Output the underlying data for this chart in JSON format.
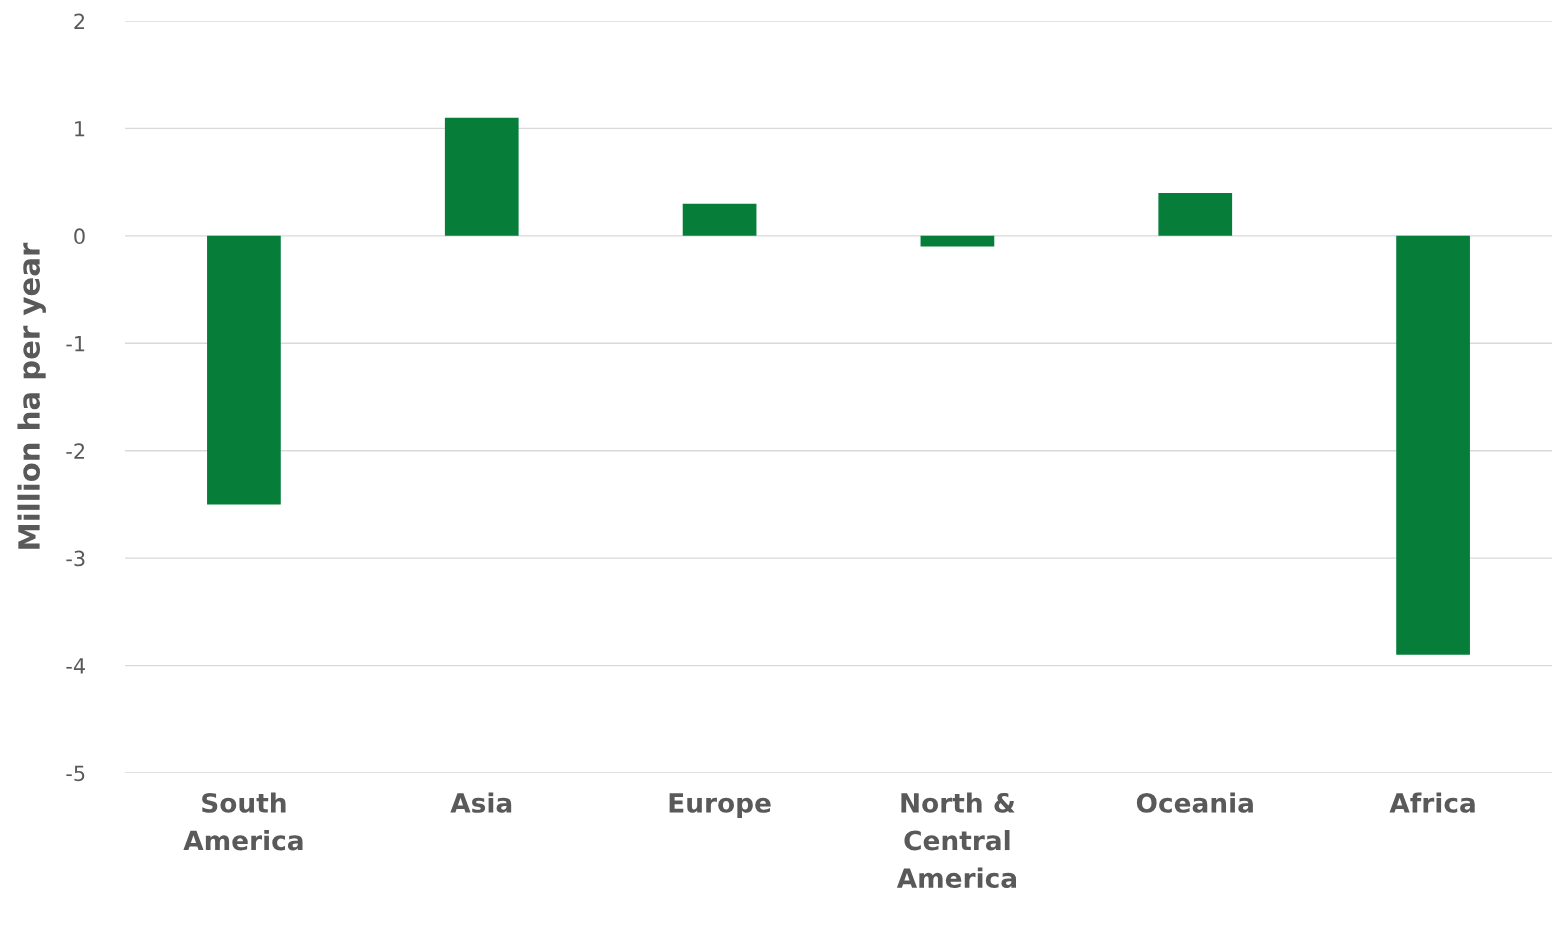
{
  "chart_data": {
    "type": "bar",
    "ylabel": "Million ha per year",
    "categories": [
      "South\nAmerica",
      "Asia",
      "Europe",
      "North &\nCentral\nAmerica",
      "Oceania",
      "Africa"
    ],
    "values": [
      -2.5,
      1.1,
      0.3,
      -0.1,
      0.4,
      -3.9
    ],
    "color": "#077d3a",
    "ylim": [
      -5,
      2
    ],
    "yticks": [
      -5,
      -4,
      -3,
      -2,
      -1,
      0,
      1,
      2
    ],
    "grid": "y",
    "legend": false
  }
}
